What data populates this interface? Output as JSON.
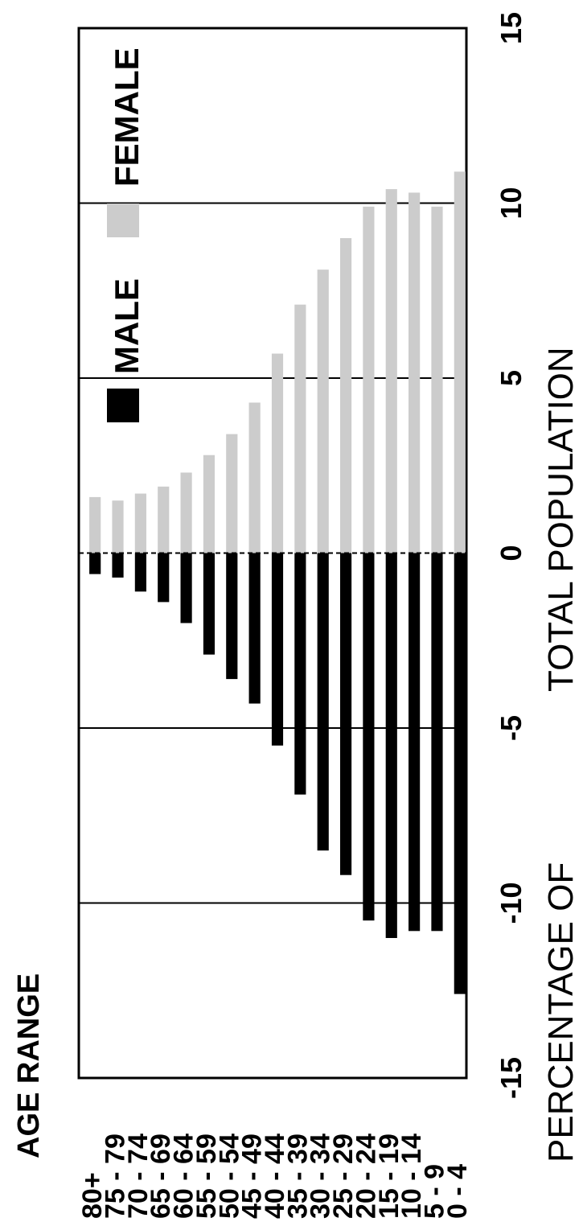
{
  "chart_data": {
    "type": "bar",
    "orientation": "horizontal",
    "categories": [
      "80+",
      "75 - 79",
      "70 - 74",
      "65 - 69",
      "60 - 64",
      "55 - 59",
      "50 - 54",
      "45 - 49",
      "40 - 44",
      "35 - 39",
      "30 - 34",
      "25 - 29",
      "20 - 24",
      "15 - 19",
      "10 - 14",
      "5 - 9",
      "0 - 4"
    ],
    "series": [
      {
        "name": "MALE",
        "color": "#000000",
        "values": [
          -0.6,
          -0.7,
          -1.1,
          -1.4,
          -2.0,
          -2.9,
          -3.6,
          -4.3,
          -5.5,
          -6.9,
          -8.5,
          -9.2,
          -10.5,
          -11.0,
          -10.8,
          -10.8,
          -12.6
        ]
      },
      {
        "name": "FEMALE",
        "color": "#cccccc",
        "values": [
          1.6,
          1.5,
          1.7,
          1.9,
          2.3,
          2.8,
          3.4,
          4.3,
          5.7,
          7.1,
          8.1,
          9.0,
          9.9,
          10.4,
          10.3,
          9.9,
          10.9
        ]
      }
    ],
    "xlabel": [
      "PERCENTAGE OF",
      "TOTAL POPULATION"
    ],
    "ylabel": "AGE RANGE",
    "xlim": [
      -15,
      15
    ],
    "xticks": [
      -15,
      -10,
      -5,
      0,
      5,
      10,
      15
    ],
    "grid": true,
    "legend_position": "upper-left"
  }
}
